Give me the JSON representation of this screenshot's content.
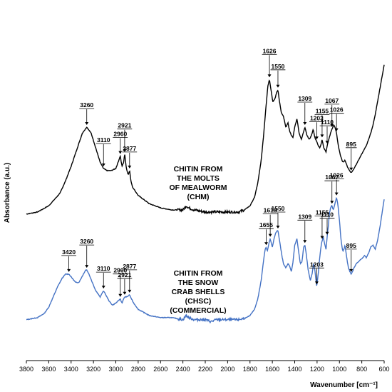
{
  "chart_data": {
    "type": "line",
    "xlabel": "Wavenumber [cm⁻¹]",
    "ylabel": "Absorbance (a.u.)",
    "xlim": [
      3800,
      600
    ],
    "x_reversed": true,
    "x_ticks": [
      3800,
      3600,
      3400,
      3200,
      3000,
      2800,
      2600,
      2400,
      2200,
      2000,
      1800,
      1600,
      1400,
      1200,
      1000,
      800,
      600
    ],
    "grid": false,
    "legend": "none",
    "series": [
      {
        "id": "chm",
        "color": "#000000",
        "label_lines": [
          "CHITIN FROM",
          "THE MOLTS",
          "OF MEALWORM",
          "(CHM)"
        ],
        "points": [
          [
            3800,
            0.08
          ],
          [
            3700,
            0.09
          ],
          [
            3600,
            0.12
          ],
          [
            3500,
            0.18
          ],
          [
            3450,
            0.24
          ],
          [
            3400,
            0.31
          ],
          [
            3350,
            0.39
          ],
          [
            3300,
            0.47
          ],
          [
            3260,
            0.5
          ],
          [
            3220,
            0.47
          ],
          [
            3180,
            0.4
          ],
          [
            3140,
            0.33
          ],
          [
            3110,
            0.3
          ],
          [
            3080,
            0.29
          ],
          [
            3040,
            0.29
          ],
          [
            3000,
            0.3
          ],
          [
            2980,
            0.33
          ],
          [
            2960,
            0.36
          ],
          [
            2945,
            0.31
          ],
          [
            2930,
            0.33
          ],
          [
            2921,
            0.37
          ],
          [
            2905,
            0.3
          ],
          [
            2890,
            0.27
          ],
          [
            2877,
            0.29
          ],
          [
            2865,
            0.24
          ],
          [
            2850,
            0.21
          ],
          [
            2800,
            0.17
          ],
          [
            2700,
            0.13
          ],
          [
            2600,
            0.11
          ],
          [
            2500,
            0.1
          ],
          [
            2400,
            0.1
          ],
          [
            2370,
            0.12
          ],
          [
            2350,
            0.11
          ],
          [
            2300,
            0.1
          ],
          [
            2200,
            0.09
          ],
          [
            2100,
            0.09
          ],
          [
            2000,
            0.09
          ],
          [
            1900,
            0.09
          ],
          [
            1850,
            0.1
          ],
          [
            1800,
            0.12
          ],
          [
            1760,
            0.16
          ],
          [
            1730,
            0.23
          ],
          [
            1700,
            0.34
          ],
          [
            1680,
            0.45
          ],
          [
            1660,
            0.58
          ],
          [
            1640,
            0.7
          ],
          [
            1626,
            0.73
          ],
          [
            1612,
            0.68
          ],
          [
            1595,
            0.62
          ],
          [
            1575,
            0.64
          ],
          [
            1560,
            0.67
          ],
          [
            1550,
            0.68
          ],
          [
            1538,
            0.63
          ],
          [
            1520,
            0.57
          ],
          [
            1500,
            0.55
          ],
          [
            1480,
            0.5
          ],
          [
            1460,
            0.52
          ],
          [
            1445,
            0.48
          ],
          [
            1430,
            0.46
          ],
          [
            1415,
            0.45
          ],
          [
            1400,
            0.5
          ],
          [
            1380,
            0.54
          ],
          [
            1360,
            0.47
          ],
          [
            1340,
            0.44
          ],
          [
            1325,
            0.47
          ],
          [
            1309,
            0.5
          ],
          [
            1290,
            0.46
          ],
          [
            1270,
            0.44
          ],
          [
            1250,
            0.46
          ],
          [
            1235,
            0.49
          ],
          [
            1220,
            0.45
          ],
          [
            1203,
            0.43
          ],
          [
            1190,
            0.41
          ],
          [
            1175,
            0.4
          ],
          [
            1162,
            0.42
          ],
          [
            1155,
            0.44
          ],
          [
            1140,
            0.4
          ],
          [
            1120,
            0.38
          ],
          [
            1110,
            0.41
          ],
          [
            1095,
            0.44
          ],
          [
            1080,
            0.47
          ],
          [
            1067,
            0.49
          ],
          [
            1050,
            0.51
          ],
          [
            1040,
            0.5
          ],
          [
            1026,
            0.47
          ],
          [
            1010,
            0.41
          ],
          [
            990,
            0.36
          ],
          [
            970,
            0.33
          ],
          [
            950,
            0.34
          ],
          [
            930,
            0.31
          ],
          [
            910,
            0.29
          ],
          [
            895,
            0.28
          ],
          [
            880,
            0.29
          ],
          [
            860,
            0.31
          ],
          [
            840,
            0.33
          ],
          [
            820,
            0.35
          ],
          [
            800,
            0.37
          ],
          [
            780,
            0.39
          ],
          [
            760,
            0.41
          ],
          [
            740,
            0.44
          ],
          [
            720,
            0.47
          ],
          [
            700,
            0.51
          ],
          [
            680,
            0.56
          ],
          [
            660,
            0.62
          ],
          [
            640,
            0.68
          ],
          [
            620,
            0.74
          ],
          [
            600,
            0.8
          ]
        ],
        "peaks": [
          {
            "x": 3260,
            "label": "3260"
          },
          {
            "x": 3110,
            "label": "3110"
          },
          {
            "x": 2960,
            "label": "2960"
          },
          {
            "x": 2921,
            "label": "2921"
          },
          {
            "x": 2877,
            "label": "2877"
          },
          {
            "x": 1626,
            "label": "1626"
          },
          {
            "x": 1550,
            "label": "1550"
          },
          {
            "x": 1309,
            "label": "1309"
          },
          {
            "x": 1203,
            "label": "1203"
          },
          {
            "x": 1155,
            "label": "1155"
          },
          {
            "x": 1110,
            "label": "1110"
          },
          {
            "x": 1067,
            "label": "1067"
          },
          {
            "x": 1026,
            "label": "1026"
          },
          {
            "x": 895,
            "label": "895"
          }
        ]
      },
      {
        "id": "chsc",
        "color": "#4472C4",
        "label_lines": [
          "CHITIN FROM",
          "THE SNOW",
          "CRAB SHELLS",
          "(CHSC)",
          "(COMMERCIAL)"
        ],
        "points": [
          [
            3800,
            -0.43
          ],
          [
            3700,
            -0.42
          ],
          [
            3640,
            -0.4
          ],
          [
            3600,
            -0.37
          ],
          [
            3560,
            -0.32
          ],
          [
            3520,
            -0.27
          ],
          [
            3480,
            -0.23
          ],
          [
            3450,
            -0.21
          ],
          [
            3420,
            -0.21
          ],
          [
            3390,
            -0.23
          ],
          [
            3360,
            -0.25
          ],
          [
            3330,
            -0.25
          ],
          [
            3300,
            -0.22
          ],
          [
            3270,
            -0.19
          ],
          [
            3260,
            -0.19
          ],
          [
            3240,
            -0.21
          ],
          [
            3210,
            -0.25
          ],
          [
            3180,
            -0.29
          ],
          [
            3140,
            -0.32
          ],
          [
            3110,
            -0.29
          ],
          [
            3090,
            -0.31
          ],
          [
            3060,
            -0.34
          ],
          [
            3030,
            -0.36
          ],
          [
            3000,
            -0.35
          ],
          [
            2980,
            -0.34
          ],
          [
            2960,
            -0.33
          ],
          [
            2945,
            -0.35
          ],
          [
            2930,
            -0.33
          ],
          [
            2921,
            -0.32
          ],
          [
            2900,
            -0.32
          ],
          [
            2877,
            -0.31
          ],
          [
            2860,
            -0.33
          ],
          [
            2840,
            -0.35
          ],
          [
            2800,
            -0.38
          ],
          [
            2700,
            -0.41
          ],
          [
            2600,
            -0.42
          ],
          [
            2500,
            -0.42
          ],
          [
            2400,
            -0.43
          ],
          [
            2370,
            -0.41
          ],
          [
            2350,
            -0.42
          ],
          [
            2300,
            -0.43
          ],
          [
            2200,
            -0.43
          ],
          [
            2150,
            -0.44
          ],
          [
            2100,
            -0.43
          ],
          [
            2000,
            -0.43
          ],
          [
            1900,
            -0.43
          ],
          [
            1830,
            -0.42
          ],
          [
            1800,
            -0.41
          ],
          [
            1760,
            -0.38
          ],
          [
            1730,
            -0.33
          ],
          [
            1700,
            -0.24
          ],
          [
            1680,
            -0.15
          ],
          [
            1665,
            -0.09
          ],
          [
            1655,
            -0.08
          ],
          [
            1645,
            -0.1
          ],
          [
            1630,
            -0.06
          ],
          [
            1619,
            -0.04
          ],
          [
            1600,
            -0.08
          ],
          [
            1585,
            -0.04
          ],
          [
            1570,
            -0.01
          ],
          [
            1555,
            0.0
          ],
          [
            1550,
            0.0
          ],
          [
            1535,
            -0.05
          ],
          [
            1515,
            -0.12
          ],
          [
            1500,
            -0.16
          ],
          [
            1480,
            -0.18
          ],
          [
            1460,
            -0.16
          ],
          [
            1445,
            -0.17
          ],
          [
            1430,
            -0.2
          ],
          [
            1415,
            -0.15
          ],
          [
            1400,
            -0.07
          ],
          [
            1380,
            -0.04
          ],
          [
            1365,
            -0.1
          ],
          [
            1350,
            -0.16
          ],
          [
            1335,
            -0.15
          ],
          [
            1320,
            -0.08
          ],
          [
            1309,
            -0.07
          ],
          [
            1295,
            -0.12
          ],
          [
            1280,
            -0.19
          ],
          [
            1260,
            -0.24
          ],
          [
            1245,
            -0.21
          ],
          [
            1232,
            -0.16
          ],
          [
            1220,
            -0.19
          ],
          [
            1210,
            -0.24
          ],
          [
            1203,
            -0.27
          ],
          [
            1190,
            -0.21
          ],
          [
            1178,
            -0.14
          ],
          [
            1168,
            -0.09
          ],
          [
            1160,
            -0.06
          ],
          [
            1155,
            -0.05
          ],
          [
            1145,
            -0.03
          ],
          [
            1130,
            -0.07
          ],
          [
            1120,
            -0.09
          ],
          [
            1110,
            -0.03
          ],
          [
            1100,
            0.02
          ],
          [
            1090,
            0.08
          ],
          [
            1080,
            0.11
          ],
          [
            1070,
            0.12
          ],
          [
            1067,
            0.12
          ],
          [
            1055,
            0.1
          ],
          [
            1040,
            0.13
          ],
          [
            1026,
            0.16
          ],
          [
            1015,
            0.13
          ],
          [
            1000,
            0.05
          ],
          [
            985,
            -0.05
          ],
          [
            970,
            -0.1
          ],
          [
            960,
            -0.09
          ],
          [
            950,
            -0.07
          ],
          [
            935,
            -0.13
          ],
          [
            920,
            -0.18
          ],
          [
            905,
            -0.2
          ],
          [
            895,
            -0.21
          ],
          [
            885,
            -0.2
          ],
          [
            870,
            -0.18
          ],
          [
            850,
            -0.16
          ],
          [
            830,
            -0.15
          ],
          [
            810,
            -0.14
          ],
          [
            790,
            -0.13
          ],
          [
            775,
            -0.12
          ],
          [
            760,
            -0.13
          ],
          [
            740,
            -0.11
          ],
          [
            720,
            -0.08
          ],
          [
            700,
            -0.07
          ],
          [
            680,
            -0.09
          ],
          [
            660,
            -0.05
          ],
          [
            640,
            0.01
          ],
          [
            620,
            0.08
          ],
          [
            600,
            0.15
          ]
        ],
        "peaks": [
          {
            "x": 3420,
            "label": "3420"
          },
          {
            "x": 3260,
            "label": "3260"
          },
          {
            "x": 3110,
            "label": "3110"
          },
          {
            "x": 2960,
            "label": "2960"
          },
          {
            "x": 2921,
            "label": "2921"
          },
          {
            "x": 2877,
            "label": "2877"
          },
          {
            "x": 1655,
            "label": "1655"
          },
          {
            "x": 1619,
            "label": "1619"
          },
          {
            "x": 1550,
            "label": "1550"
          },
          {
            "x": 1309,
            "label": "1309"
          },
          {
            "x": 1203,
            "label": "1203"
          },
          {
            "x": 1155,
            "label": "1155"
          },
          {
            "x": 1110,
            "label": "1110"
          },
          {
            "x": 1067,
            "label": "1067"
          },
          {
            "x": 1026,
            "label": "1026"
          },
          {
            "x": 895,
            "label": "895"
          }
        ]
      }
    ]
  }
}
